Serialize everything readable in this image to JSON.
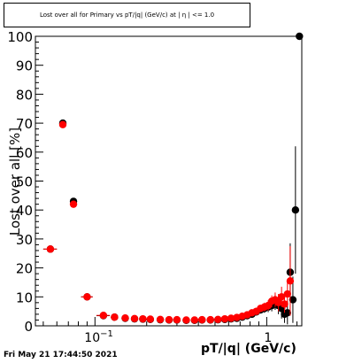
{
  "chart_data": {
    "type": "scatter",
    "title": "Lost over all for Primary vs pT/|q| (GeV/c) at | η | <= 1.0",
    "xlabel": "pT/|q| (GeV/c)",
    "ylabel": "Lost over all [%]",
    "x_scale": "log",
    "xlim": [
      0.045,
      1.6
    ],
    "ylim": [
      0,
      100
    ],
    "x_ticks": [
      {
        "value": 0.1,
        "base": "10",
        "exp": "−1"
      },
      {
        "value": 1,
        "base": "1",
        "exp": ""
      }
    ],
    "y_ticks": [
      0,
      10,
      20,
      30,
      40,
      50,
      60,
      70,
      80,
      90,
      100
    ],
    "grid": false,
    "legend": "none",
    "series": [
      {
        "color": "#000000",
        "points": [
          {
            "x": 0.055,
            "y": 26.5,
            "xerr": 0.005,
            "yerr": 0.8
          },
          {
            "x": 0.065,
            "y": 70.0,
            "xerr": 0.003,
            "yerr": 1.2
          },
          {
            "x": 0.075,
            "y": 43.0,
            "xerr": 0.003,
            "yerr": 1.0
          },
          {
            "x": 0.09,
            "y": 10.0,
            "xerr": 0.007,
            "yerr": 0.5
          },
          {
            "x": 0.112,
            "y": 3.5,
            "xerr": 0.01,
            "yerr": 0.4
          },
          {
            "x": 0.13,
            "y": 3.0,
            "xerr": 0.006,
            "yerr": 0.3
          },
          {
            "x": 0.15,
            "y": 2.6,
            "xerr": 0.007,
            "yerr": 0.3
          },
          {
            "x": 0.17,
            "y": 2.4,
            "xerr": 0.008,
            "yerr": 0.3
          },
          {
            "x": 0.19,
            "y": 2.3,
            "xerr": 0.009,
            "yerr": 0.3
          },
          {
            "x": 0.21,
            "y": 2.2,
            "xerr": 0.01,
            "yerr": 0.3
          },
          {
            "x": 0.24,
            "y": 2.1,
            "xerr": 0.01,
            "yerr": 0.3
          },
          {
            "x": 0.27,
            "y": 2.0,
            "xerr": 0.012,
            "yerr": 0.3
          },
          {
            "x": 0.3,
            "y": 2.0,
            "xerr": 0.014,
            "yerr": 0.3
          },
          {
            "x": 0.34,
            "y": 1.9,
            "xerr": 0.016,
            "yerr": 0.3
          },
          {
            "x": 0.38,
            "y": 1.9,
            "xerr": 0.018,
            "yerr": 0.3
          },
          {
            "x": 0.42,
            "y": 2.0,
            "xerr": 0.02,
            "yerr": 0.3
          },
          {
            "x": 0.47,
            "y": 2.0,
            "xerr": 0.022,
            "yerr": 0.4
          },
          {
            "x": 0.52,
            "y": 2.1,
            "xerr": 0.024,
            "yerr": 0.4
          },
          {
            "x": 0.57,
            "y": 2.2,
            "xerr": 0.025,
            "yerr": 0.4
          },
          {
            "x": 0.62,
            "y": 2.4,
            "xerr": 0.025,
            "yerr": 0.5
          },
          {
            "x": 0.67,
            "y": 2.6,
            "xerr": 0.025,
            "yerr": 0.5
          },
          {
            "x": 0.72,
            "y": 3.0,
            "xerr": 0.025,
            "yerr": 0.6
          },
          {
            "x": 0.77,
            "y": 3.5,
            "xerr": 0.025,
            "yerr": 0.7
          },
          {
            "x": 0.82,
            "y": 4.0,
            "xerr": 0.025,
            "yerr": 0.8
          },
          {
            "x": 0.87,
            "y": 4.8,
            "xerr": 0.025,
            "yerr": 1.0
          },
          {
            "x": 0.92,
            "y": 5.5,
            "xerr": 0.025,
            "yerr": 1.2
          },
          {
            "x": 0.97,
            "y": 6.0,
            "xerr": 0.025,
            "yerr": 1.5
          },
          {
            "x": 1.02,
            "y": 6.5,
            "xerr": 0.025,
            "yerr": 1.8
          },
          {
            "x": 1.07,
            "y": 7.0,
            "xerr": 0.025,
            "yerr": 2.0
          },
          {
            "x": 1.12,
            "y": 8.0,
            "xerr": 0.025,
            "yerr": 2.5
          },
          {
            "x": 1.17,
            "y": 7.0,
            "xerr": 0.025,
            "yerr": 3.0
          },
          {
            "x": 1.22,
            "y": 6.0,
            "xerr": 0.025,
            "yerr": 3.5
          },
          {
            "x": 1.27,
            "y": 4.0,
            "xerr": 0.025,
            "yerr": 3.0
          },
          {
            "x": 1.32,
            "y": 4.5,
            "xerr": 0.025,
            "yerr": 4.0
          },
          {
            "x": 1.37,
            "y": 18.5,
            "xerr": 0.025,
            "yerr": 10.0
          },
          {
            "x": 1.42,
            "y": 9.0,
            "xerr": 0.025,
            "yerr": 8.0
          },
          {
            "x": 1.47,
            "y": 40.0,
            "xerr": 0.025,
            "yerr": 22.0
          },
          {
            "x": 1.55,
            "y": 100.0,
            "xerr": 0.025,
            "yerr": 0.0
          }
        ]
      },
      {
        "color": "#ff0000",
        "points": [
          {
            "x": 0.055,
            "y": 26.5,
            "xerr": 0.005,
            "yerr": 0.8
          },
          {
            "x": 0.065,
            "y": 69.5,
            "xerr": 0.003,
            "yerr": 1.2
          },
          {
            "x": 0.075,
            "y": 42.0,
            "xerr": 0.003,
            "yerr": 1.0
          },
          {
            "x": 0.09,
            "y": 10.0,
            "xerr": 0.007,
            "yerr": 0.5
          },
          {
            "x": 0.112,
            "y": 3.6,
            "xerr": 0.01,
            "yerr": 0.4
          },
          {
            "x": 0.13,
            "y": 3.0,
            "xerr": 0.006,
            "yerr": 0.3
          },
          {
            "x": 0.15,
            "y": 2.7,
            "xerr": 0.007,
            "yerr": 0.3
          },
          {
            "x": 0.17,
            "y": 2.5,
            "xerr": 0.008,
            "yerr": 0.3
          },
          {
            "x": 0.19,
            "y": 2.4,
            "xerr": 0.009,
            "yerr": 0.3
          },
          {
            "x": 0.21,
            "y": 2.3,
            "xerr": 0.01,
            "yerr": 0.3
          },
          {
            "x": 0.24,
            "y": 2.2,
            "xerr": 0.01,
            "yerr": 0.3
          },
          {
            "x": 0.27,
            "y": 2.1,
            "xerr": 0.012,
            "yerr": 0.3
          },
          {
            "x": 0.3,
            "y": 2.1,
            "xerr": 0.014,
            "yerr": 0.3
          },
          {
            "x": 0.34,
            "y": 2.0,
            "xerr": 0.016,
            "yerr": 0.3
          },
          {
            "x": 0.38,
            "y": 2.0,
            "xerr": 0.018,
            "yerr": 0.3
          },
          {
            "x": 0.42,
            "y": 2.1,
            "xerr": 0.02,
            "yerr": 0.3
          },
          {
            "x": 0.47,
            "y": 2.1,
            "xerr": 0.022,
            "yerr": 0.4
          },
          {
            "x": 0.52,
            "y": 2.2,
            "xerr": 0.024,
            "yerr": 0.4
          },
          {
            "x": 0.57,
            "y": 2.4,
            "xerr": 0.025,
            "yerr": 0.4
          },
          {
            "x": 0.62,
            "y": 2.6,
            "xerr": 0.025,
            "yerr": 0.5
          },
          {
            "x": 0.67,
            "y": 2.9,
            "xerr": 0.025,
            "yerr": 0.5
          },
          {
            "x": 0.72,
            "y": 3.3,
            "xerr": 0.025,
            "yerr": 0.6
          },
          {
            "x": 0.77,
            "y": 3.8,
            "xerr": 0.025,
            "yerr": 0.7
          },
          {
            "x": 0.82,
            "y": 4.5,
            "xerr": 0.025,
            "yerr": 0.8
          },
          {
            "x": 0.87,
            "y": 5.0,
            "xerr": 0.025,
            "yerr": 1.0
          },
          {
            "x": 0.92,
            "y": 6.0,
            "xerr": 0.025,
            "yerr": 1.2
          },
          {
            "x": 0.97,
            "y": 6.5,
            "xerr": 0.025,
            "yerr": 1.5
          },
          {
            "x": 1.02,
            "y": 7.0,
            "xerr": 0.025,
            "yerr": 1.8
          },
          {
            "x": 1.07,
            "y": 8.5,
            "xerr": 0.025,
            "yerr": 2.0
          },
          {
            "x": 1.12,
            "y": 9.0,
            "xerr": 0.025,
            "yerr": 2.5
          },
          {
            "x": 1.17,
            "y": 8.0,
            "xerr": 0.025,
            "yerr": 3.0
          },
          {
            "x": 1.22,
            "y": 10.0,
            "xerr": 0.025,
            "yerr": 3.5
          },
          {
            "x": 1.27,
            "y": 7.5,
            "xerr": 0.025,
            "yerr": 3.0
          },
          {
            "x": 1.32,
            "y": 11.0,
            "xerr": 0.025,
            "yerr": 4.0
          },
          {
            "x": 1.37,
            "y": 15.5,
            "xerr": 0.025,
            "yerr": 12.0
          }
        ]
      }
    ]
  },
  "footer": {
    "timestamp": "Fri May 21 17:44:50 2021"
  }
}
